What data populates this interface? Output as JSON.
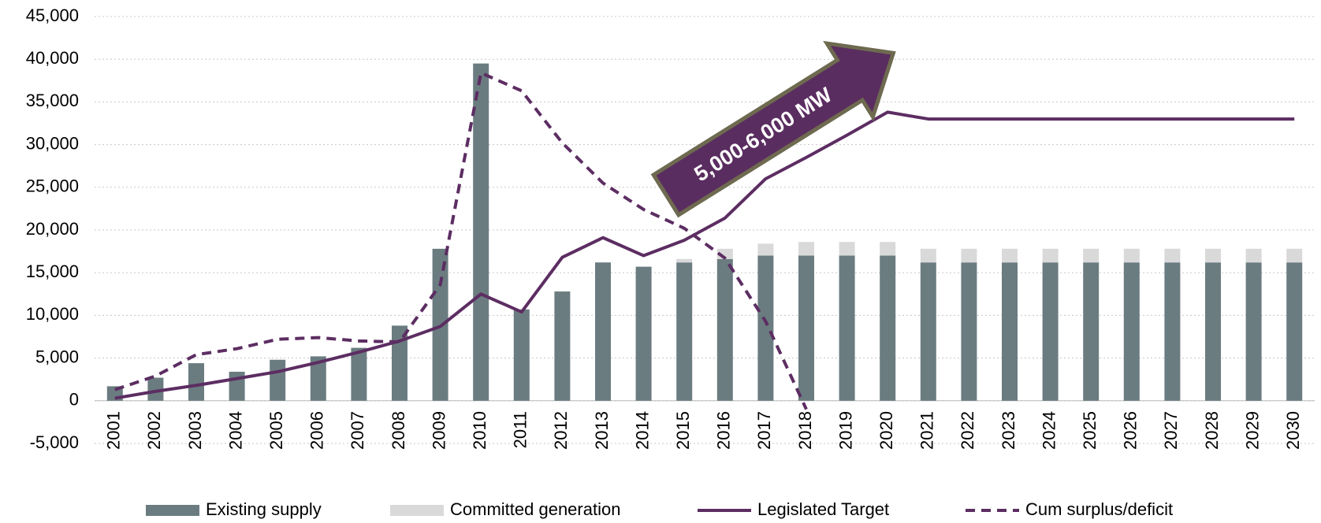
{
  "chart_data": {
    "type": "bar",
    "annotation": "5,000-6,000 MW",
    "categories": [
      "2001",
      "2002",
      "2003",
      "2004",
      "2005",
      "2006",
      "2007",
      "2008",
      "2009",
      "2010",
      "2011",
      "2012",
      "2013",
      "2014",
      "2015",
      "2016",
      "2017",
      "2018",
      "2019",
      "2020",
      "2021",
      "2022",
      "2023",
      "2024",
      "2025",
      "2026",
      "2027",
      "2028",
      "2029",
      "2030"
    ],
    "series": [
      {
        "name": "Existing supply",
        "type": "bar",
        "color": "#6b7c80",
        "values": [
          1700,
          2700,
          4400,
          3400,
          4800,
          5200,
          6200,
          8800,
          17800,
          39500,
          10700,
          12800,
          16200,
          15700,
          16200,
          16600,
          17000,
          17000,
          17000,
          17000,
          16200,
          16200,
          16200,
          16200,
          16200,
          16200,
          16200,
          16200,
          16200,
          16200
        ]
      },
      {
        "name": "Committed generation",
        "type": "bar",
        "color": "#d9d9d9",
        "values": [
          0,
          0,
          0,
          0,
          0,
          0,
          0,
          0,
          0,
          0,
          0,
          0,
          0,
          0,
          400,
          1200,
          1400,
          1600,
          1600,
          1600,
          1600,
          1600,
          1600,
          1600,
          1600,
          1600,
          1600,
          1600,
          1600,
          1600
        ]
      },
      {
        "name": "Legislated Target",
        "type": "line",
        "color": "#5c2d62",
        "dashed": false,
        "values": [
          300,
          1100,
          1800,
          2600,
          3400,
          4500,
          5700,
          7000,
          8700,
          12500,
          10400,
          16800,
          19100,
          17000,
          18800,
          21400,
          26000,
          28500,
          31100,
          33800,
          33000,
          33000,
          33000,
          33000,
          33000,
          33000,
          33000,
          33000,
          33000,
          33000
        ]
      },
      {
        "name": "Cum surplus/deficit",
        "type": "line",
        "color": "#5c2d62",
        "dashed": true,
        "values": [
          1300,
          2900,
          5400,
          6100,
          7200,
          7400,
          7000,
          6900,
          13600,
          38400,
          36300,
          30200,
          25500,
          22400,
          20200,
          16700,
          9300,
          -1000,
          null,
          null,
          null,
          null,
          null,
          null,
          null,
          null,
          null,
          null,
          null,
          null
        ]
      }
    ],
    "ylim": [
      -5000,
      45000
    ],
    "yticks": [
      {
        "value": -5000,
        "label": "-5,000"
      },
      0,
      {
        "value": 5000,
        "label": "5,000"
      },
      {
        "value": 10000,
        "label": "10,000"
      },
      {
        "value": 15000,
        "label": "15,000"
      },
      {
        "value": 20000,
        "label": "20,000"
      },
      {
        "value": 25000,
        "label": "25,000"
      },
      {
        "value": 30000,
        "label": "30,000"
      },
      {
        "value": 35000,
        "label": "35,000"
      },
      {
        "value": 40000,
        "label": "40,000"
      },
      {
        "value": 45000,
        "label": "45,000"
      }
    ],
    "grid": true,
    "legend": "bottom"
  }
}
